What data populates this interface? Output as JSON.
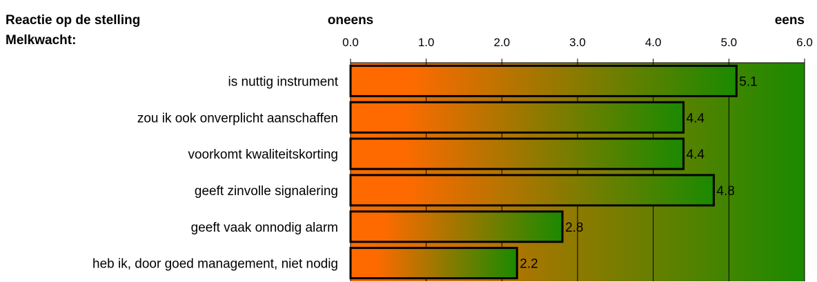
{
  "chart_data": {
    "type": "bar",
    "orientation": "horizontal",
    "title_lines": [
      "Reactie op de stelling",
      "Melkwacht:"
    ],
    "scale_left_label": "oneens",
    "scale_right_label": "eens",
    "xlim": [
      0,
      6
    ],
    "x_ticks": [
      "0.0",
      "1.0",
      "2.0",
      "3.0",
      "4.0",
      "5.0",
      "6.0"
    ],
    "categories": [
      "is nuttig instrument",
      "zou ik ook onverplicht aanschaffen",
      "voorkomt kwaliteitskorting",
      "geeft zinvolle signalering",
      "geeft vaak onnodig alarm",
      "heb ik, door goed management, niet nodig"
    ],
    "values": [
      5.1,
      4.4,
      4.4,
      4.8,
      2.8,
      2.2
    ],
    "value_labels": [
      "5.1",
      "4.4",
      "4.4",
      "4.8",
      "2.8",
      "2.2"
    ],
    "grid": true,
    "colors": {
      "start": "#ff6a00",
      "end": "#1a8a00",
      "bar_outline": "#000000",
      "grid": "#000000"
    }
  }
}
